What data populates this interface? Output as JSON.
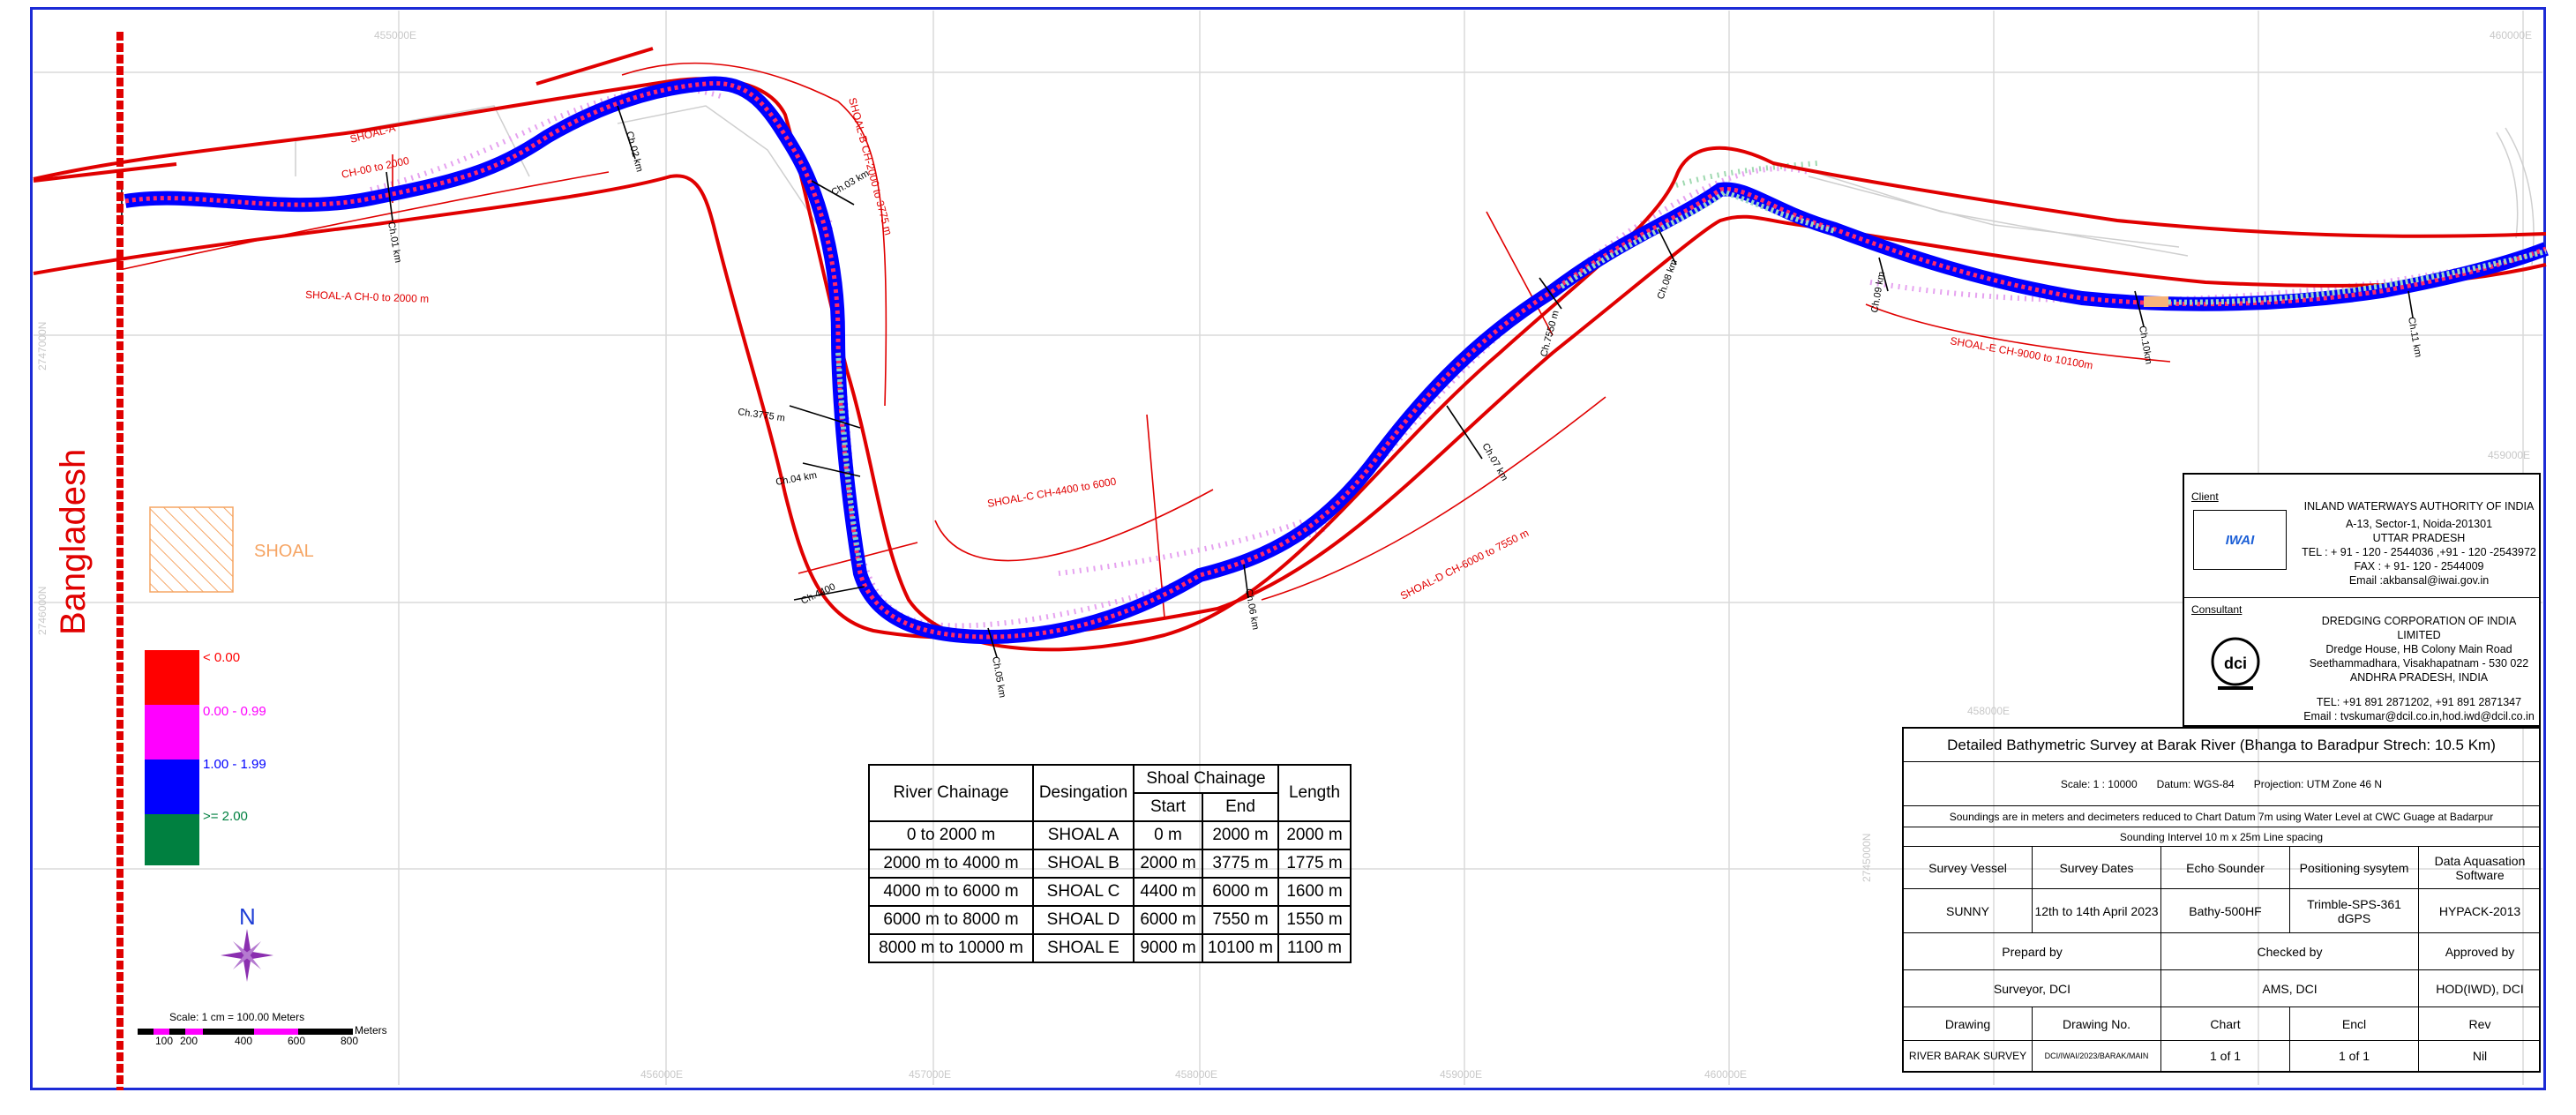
{
  "map": {
    "country_label": "Bangladesh",
    "shoal_legend_label": "SHOAL",
    "depth_legend": [
      {
        "label": "< 0.00",
        "color": "#ff0000"
      },
      {
        "label": "0.00 - 0.99",
        "color": "#ff00ff"
      },
      {
        "label": "1.00 - 1.99",
        "color": "#0000ff"
      },
      {
        "label": ">= 2.00",
        "color": "#008040"
      }
    ],
    "north_label": "N",
    "scale_text": "Scale: 1 cm = 100.00 Meters",
    "scale_ticks": [
      "100",
      "200",
      "400",
      "600",
      "800"
    ],
    "scale_unit": "Meters",
    "shoal_annotations": [
      "SHOAL-A",
      "CH-00 to 2000",
      "SHOAL-A CH-0 to 2000 m",
      "SHOAL-B CH-2000 to 3775 m",
      "SHOAL-C CH-4400 to 6000",
      "SHOAL-D CH-6000 to 7550 m",
      "SHOAL-E  CH-9000 to 10100m"
    ],
    "chainage_labels": [
      "Ch.01 km",
      "Ch.02 km",
      "Ch.03 km",
      "Ch.3775 m",
      "Ch.04 km",
      "Ch.4400",
      "Ch.05 km",
      "Ch.06 km",
      "Ch.07 km",
      "Ch.7550 m",
      "Ch.08 km",
      "Ch.09 km",
      "Ch.10km",
      "Ch.11 km"
    ],
    "grid_eastings": [
      "455000E",
      "456000E",
      "457000E",
      "458000E",
      "459000E",
      "460000E"
    ],
    "grid_northings": [
      "2747000N",
      "2746000N",
      "2745000N"
    ]
  },
  "chainage_table": {
    "headers": {
      "river_chainage": "River Chainage",
      "designation": "Desingation",
      "shoal_chainage": "Shoal Chainage",
      "start": "Start",
      "end": "End",
      "length": "Length"
    },
    "rows": [
      {
        "river": "0 to 2000 m",
        "designation": "SHOAL A",
        "start": "0 m",
        "end": "2000 m",
        "length": "2000 m"
      },
      {
        "river": "2000 m to 4000 m",
        "designation": "SHOAL B",
        "start": "2000 m",
        "end": "3775 m",
        "length": "1775 m"
      },
      {
        "river": "4000 m to 6000 m",
        "designation": "SHOAL C",
        "start": "4400 m",
        "end": "6000 m",
        "length": "1600 m"
      },
      {
        "river": "6000 m to 8000 m",
        "designation": "SHOAL D",
        "start": "6000 m",
        "end": "7550 m",
        "length": "1550 m"
      },
      {
        "river": "8000 m to 10000 m",
        "designation": "SHOAL E",
        "start": "9000 m",
        "end": "10100 m",
        "length": "1100 m"
      }
    ]
  },
  "client_block": {
    "client_label": "Client",
    "client_logo_text": "IWAI",
    "client_lines": [
      "INLAND WATERWAYS AUTHORITY OF INDIA",
      "A-13, Sector-1, Noida-201301",
      "UTTAR PRADESH",
      "TEL : + 91 - 120 - 2544036 ,+91 - 120 -2543972",
      "FAX : + 91- 120 - 2544009",
      "Email :akbansal@iwai.gov.in"
    ],
    "consultant_label": "Consultant",
    "consultant_logo_text": "dci",
    "consultant_lines": [
      "DREDGING CORPORATION OF INDIA LIMITED",
      "Dredge House, HB Colony Main Road",
      "Seethammadhara, Visakhapatnam - 530 022",
      "ANDHRA PRADESH, INDIA",
      "",
      "TEL: +91 891 2871202, +91 891 2871347",
      "Email : tvskumar@dcil.co.in,hod.iwd@dcil.co.in"
    ]
  },
  "title_block": {
    "title": "Detailed Bathymetric Survey at Barak River (Bhanga to Baradpur Strech: 10.5 Km)",
    "scale": "Scale: 1 : 10000",
    "datum": "Datum: WGS-84",
    "projection": "Projection: UTM Zone 46 N",
    "note1": "Soundings are in meters and decimeters reduced to Chart Datum 7m using Water Level at CWC Guage at Badarpur",
    "note2": "Sounding Intervel 10 m x 25m Line spacing",
    "survey_headers": [
      "Survey Vessel",
      "Survey Dates",
      "Echo Sounder",
      "Positioning sysytem",
      "Data Aquasation Software"
    ],
    "survey_values": [
      "SUNNY",
      "12th to 14th April 2023",
      "Bathy-500HF",
      "Trimble-SPS-361 dGPS",
      "HYPACK-2013"
    ],
    "prepared_label": "Prepard by",
    "checked_label": "Checked by",
    "approved_label": "Approved by",
    "prepared_value": "Surveyor, DCI",
    "checked_value": "AMS, DCI",
    "approved_value": "HOD(IWD), DCI",
    "drawing_headers": [
      "Drawing",
      "Drawing No.",
      "Chart",
      "Encl",
      "Rev"
    ],
    "drawing_values": [
      "RIVER BARAK SURVEY",
      "DCI/IWAI/2023/BARAK/MAIN",
      "1 of 1",
      "1 of 1",
      "Nil"
    ]
  }
}
